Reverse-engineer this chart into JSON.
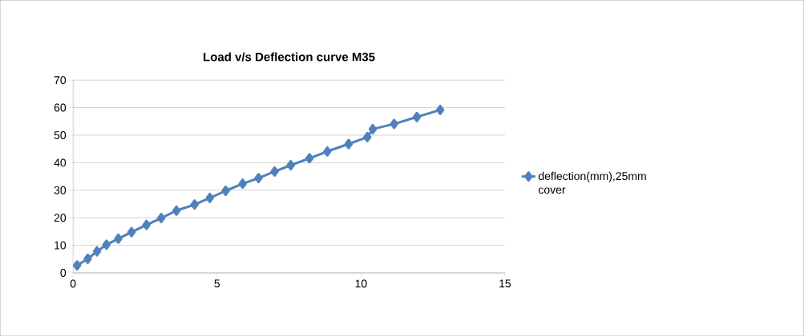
{
  "chart_data": {
    "type": "line",
    "title": "Load v/s Deflection curve M35",
    "series": [
      {
        "name": "deflection(mm),25mm cover",
        "color": "#4f81bd",
        "x": [
          0.14,
          0.51,
          0.83,
          1.16,
          1.57,
          2.03,
          2.55,
          3.06,
          3.59,
          4.22,
          4.75,
          5.3,
          5.89,
          6.44,
          7.0,
          7.56,
          8.21,
          8.83,
          9.57,
          10.22,
          10.41,
          11.15,
          11.94,
          12.75
        ],
        "values": [
          2.7,
          5.1,
          7.8,
          10.2,
          12.4,
          14.8,
          17.4,
          19.9,
          22.6,
          24.8,
          27.2,
          29.8,
          32.4,
          34.4,
          36.8,
          39.1,
          41.6,
          44.1,
          46.8,
          49.3,
          52.2,
          54.1,
          56.6,
          59.2
        ]
      }
    ],
    "xlim": [
      0,
      15
    ],
    "xticks": [
      0,
      5,
      10,
      15
    ],
    "ylim": [
      0,
      70
    ],
    "yticks": [
      0,
      10,
      20,
      30,
      40,
      50,
      60,
      70
    ],
    "grid": "y",
    "legend": "right",
    "marker": "diamond",
    "line_style": "solid"
  }
}
